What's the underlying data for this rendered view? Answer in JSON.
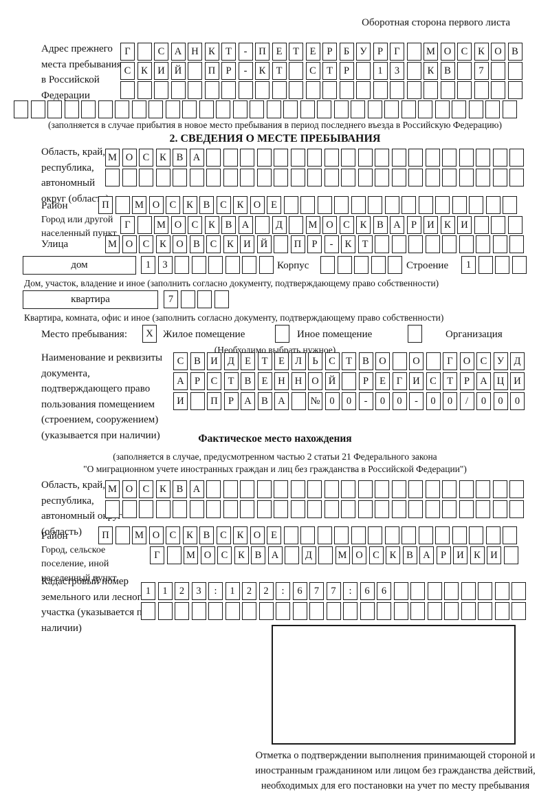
{
  "header": {
    "note": "Оборотная сторона первого листа"
  },
  "prev_address": {
    "label": "Адрес прежнего места пребывания в Российской Федерации",
    "row1": {
      "text": "Г САНКТ-ПЕТЕРБУРГ МОСКОВ",
      "len": 24
    },
    "row2": {
      "text": "СКИЙ ПР-КТ СТР 13 КВ 7",
      "len": 24
    },
    "row3": {
      "len": 24
    },
    "row4": {
      "len": 30
    },
    "note": "(заполняется в случае прибытия в новое место пребывания в период последнего въезда в Российскую Федерацию)"
  },
  "section2": {
    "title": "2. СВЕДЕНИЯ О МЕСТЕ ПРЕБЫВАНИЯ",
    "region": {
      "label": "Область, край, республика, автономный округ (область)",
      "row1": {
        "text": "МОСКВА",
        "len": 25
      },
      "row2": {
        "len": 25
      }
    },
    "district": {
      "label": "Район",
      "row": {
        "text": "П МОСКВСКОЕ",
        "len": 25
      }
    },
    "city": {
      "label": "Город или другой населенный пункт",
      "row": {
        "text": "Г МОСКВА Д МОСКВАРИКИ",
        "len": 24
      }
    },
    "street": {
      "label": "Улица",
      "row": {
        "text": "МОСКОВСКИЙ ПР-КТ",
        "len": 25
      }
    },
    "house": {
      "field_label": "дом",
      "cells": {
        "text": "13",
        "len": 8
      },
      "korpus_label": "Корпус",
      "korpus_cells": {
        "len": 5
      },
      "stroenie_label": "Строение",
      "stroenie_cells": {
        "text": "1",
        "len": 4
      },
      "caption": "Дом, участок, владение и иное (заполнить согласно документу, подтверждающему право собственности)"
    },
    "apartment": {
      "field_label": "квартира",
      "cells": {
        "text": "7",
        "len": 4
      },
      "caption": "Квартира, комната, офис и иное (заполнить согласно документу, подтверждающему право собственности)"
    },
    "stay_type": {
      "label": "Место пребывания:",
      "options": [
        {
          "label": "Жилое помещение",
          "checked": "X"
        },
        {
          "label": "Иное помещение",
          "checked": ""
        },
        {
          "label": "Организация",
          "checked": ""
        }
      ],
      "note": "(Необходимо выбрать нужное)"
    },
    "document": {
      "label": "Наименование и реквизиты документа, подтверждающего право пользования помещением (строением, сооружением) (указывается при наличии)",
      "row1": {
        "text": "СВИДЕТЕЛЬСТВО О ГОСУД",
        "len": 21
      },
      "row2": {
        "text": "АРСТВЕННОЙ РЕГИСТРАЦИ",
        "len": 21
      },
      "row3": {
        "text": "И ПРАВА №00-00-00/000",
        "len": 21
      }
    }
  },
  "actual_location": {
    "title": "Фактическое место нахождения",
    "note_line1": "(заполняется в случае, предусмотренном частью 2 статьи 21 Федерального закона",
    "note_line2": "\"О миграционном учете иностранных граждан и лиц без гражданства в Российской Федерации\")",
    "region": {
      "label": "Область, край, республика, автономный округ (область)",
      "row1": {
        "text": "МОСКВА",
        "len": 25
      },
      "row2": {
        "len": 25
      }
    },
    "district": {
      "label": "Район",
      "row": {
        "text": "П МОСКВСКОЕ",
        "len": 25
      }
    },
    "city": {
      "label": "Город, сельское поселение, иной населенный пункт",
      "row": {
        "text": "Г МОСКВА Д МОСКВАРИКИ",
        "len": 22
      }
    },
    "cadastral": {
      "label": "Кадастровый номер земельного или лесного участка (указывается при наличии)",
      "row1": {
        "text": "1123:122:677:66",
        "len": 23
      },
      "row2": {
        "len": 23
      }
    },
    "stamp_caption": "Отметка о подтверждении выполнения принимающей стороной и иностранным гражданином или лицом без гражданства действий, необходимых для его постановки на учет по месту пребывания"
  }
}
